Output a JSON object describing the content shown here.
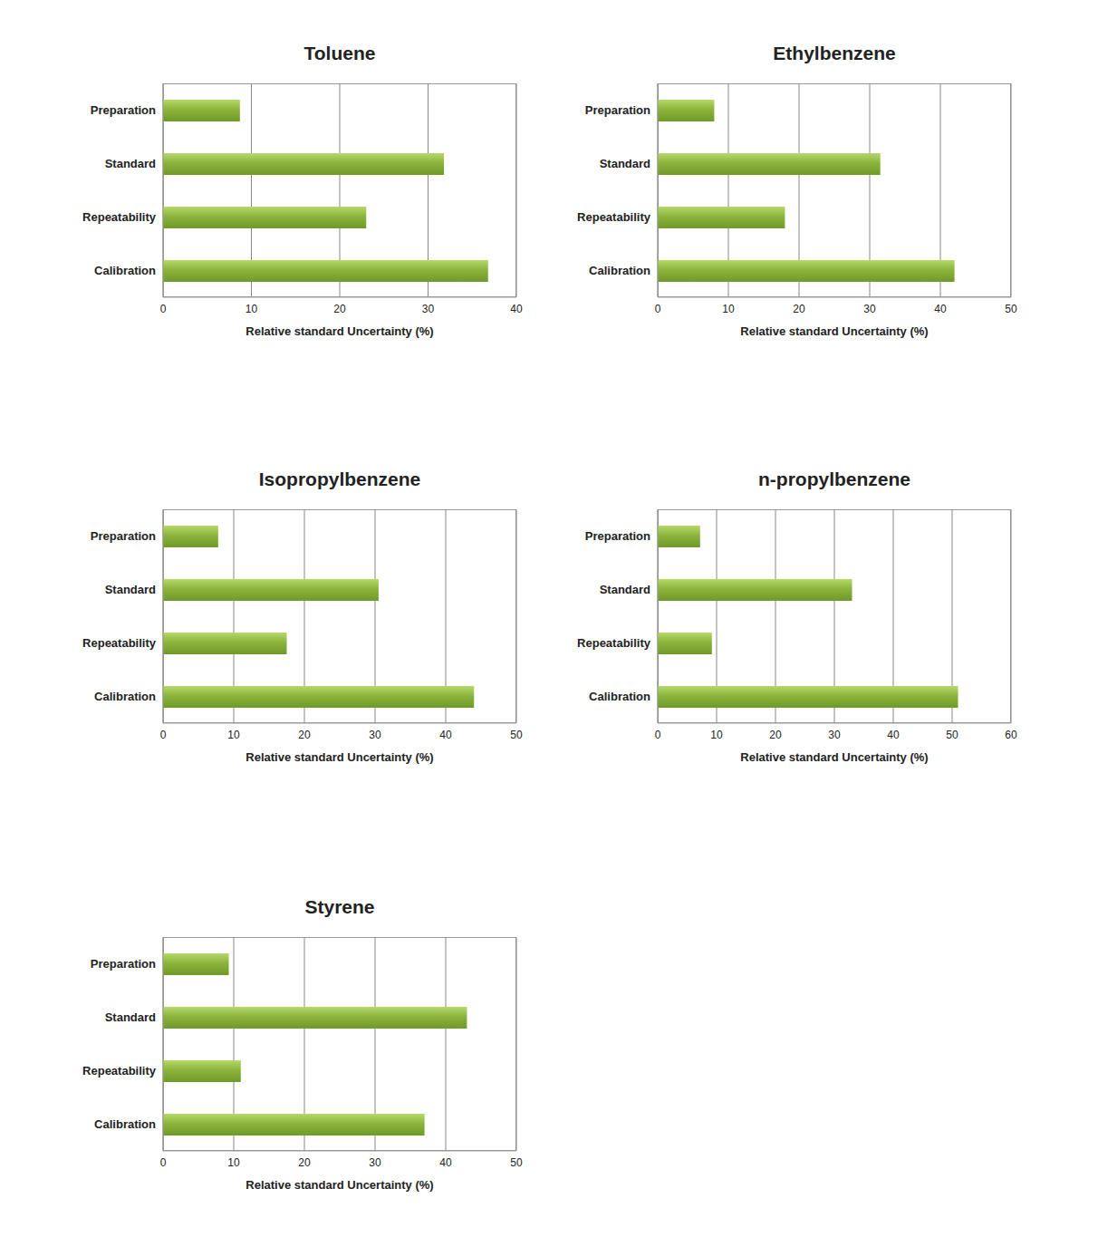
{
  "chart_data": [
    {
      "type": "bar",
      "title": "Toluene",
      "orientation": "horizontal",
      "grid": true,
      "color": "#8cb43c",
      "categories": [
        "Preparation",
        "Standard",
        "Repeatability",
        "Calibration"
      ],
      "values": [
        8.7,
        31.8,
        23,
        36.8
      ],
      "xlabel": "Relative standard Uncertainty (%)",
      "xlim": [
        0,
        40
      ],
      "xticks": [
        0,
        10,
        20,
        30,
        40
      ]
    },
    {
      "type": "bar",
      "title": "Ethylbenzene",
      "orientation": "horizontal",
      "grid": true,
      "color": "#8cb43c",
      "categories": [
        "Preparation",
        "Standard",
        "Repeatability",
        "Calibration"
      ],
      "values": [
        8,
        31.5,
        18,
        42
      ],
      "xlabel": "Relative standard Uncertainty (%)",
      "xlim": [
        0,
        50
      ],
      "xticks": [
        0,
        10,
        20,
        30,
        40,
        50
      ]
    },
    {
      "type": "bar",
      "title": "Isopropylbenzene",
      "orientation": "horizontal",
      "grid": true,
      "color": "#8cb43c",
      "categories": [
        "Preparation",
        "Standard",
        "Repeatability",
        "Calibration"
      ],
      "values": [
        7.8,
        30.5,
        17.5,
        44
      ],
      "xlabel": "Relative standard Uncertainty (%)",
      "xlim": [
        0,
        50
      ],
      "xticks": [
        0,
        10,
        20,
        30,
        40,
        50
      ]
    },
    {
      "type": "bar",
      "title": "n-propylbenzene",
      "orientation": "horizontal",
      "grid": true,
      "color": "#8cb43c",
      "categories": [
        "Preparation",
        "Standard",
        "Repeatability",
        "Calibration"
      ],
      "values": [
        7.2,
        33,
        9.2,
        51
      ],
      "xlabel": "Relative standard Uncertainty (%)",
      "xlim": [
        0,
        60
      ],
      "xticks": [
        0,
        10,
        20,
        30,
        40,
        50,
        60
      ]
    },
    {
      "type": "bar",
      "title": "Styrene",
      "orientation": "horizontal",
      "grid": true,
      "color": "#8cb43c",
      "categories": [
        "Preparation",
        "Standard",
        "Repeatability",
        "Calibration"
      ],
      "values": [
        9.3,
        43,
        11,
        37
      ],
      "xlabel": "Relative standard Uncertainty (%)",
      "xlim": [
        0,
        50
      ],
      "xticks": [
        0,
        10,
        20,
        30,
        40,
        50
      ]
    }
  ]
}
